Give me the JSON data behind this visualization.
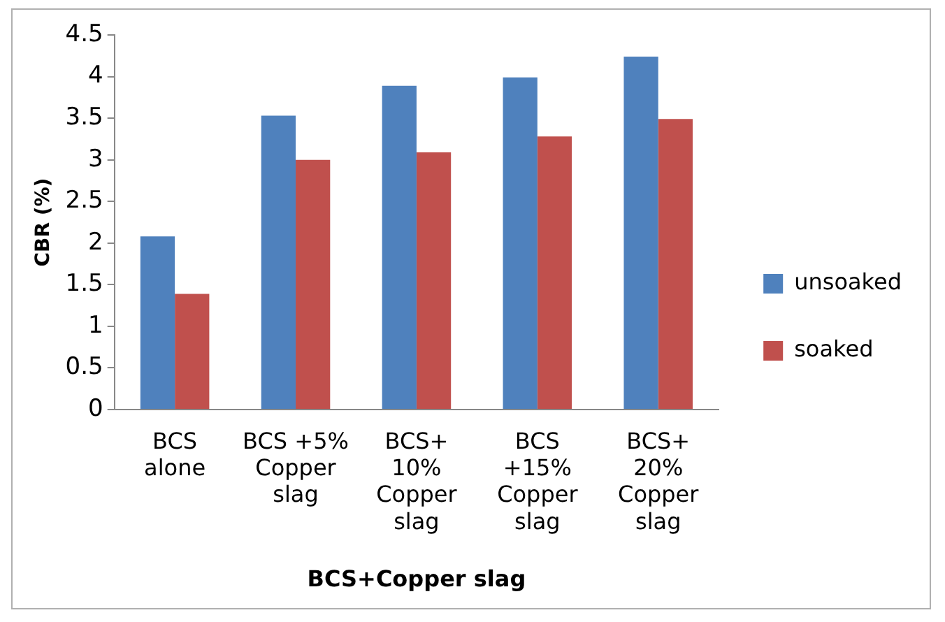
{
  "chart_data": {
    "type": "bar",
    "xlabel": "BCS+Copper slag",
    "ylabel": "CBR (%)",
    "categories": [
      "BCS alone",
      "BCS +5% Copper slag",
      "BCS+ 10% Copper slag",
      "BCS +15% Copper slag",
      "BCS+ 20% Copper slag"
    ],
    "series": [
      {
        "name": "unsoaked",
        "color": "#4f81bd",
        "values": [
          2.08,
          3.53,
          3.89,
          3.99,
          4.24
        ]
      },
      {
        "name": "soaked",
        "color": "#c0504d",
        "values": [
          1.39,
          3.0,
          3.09,
          3.28,
          3.49
        ]
      }
    ],
    "ylim": [
      0,
      4.5
    ],
    "yticks": [
      0,
      0.5,
      1,
      1.5,
      2,
      2.5,
      3,
      3.5,
      4,
      4.5
    ],
    "grid": false,
    "legend": "right"
  }
}
